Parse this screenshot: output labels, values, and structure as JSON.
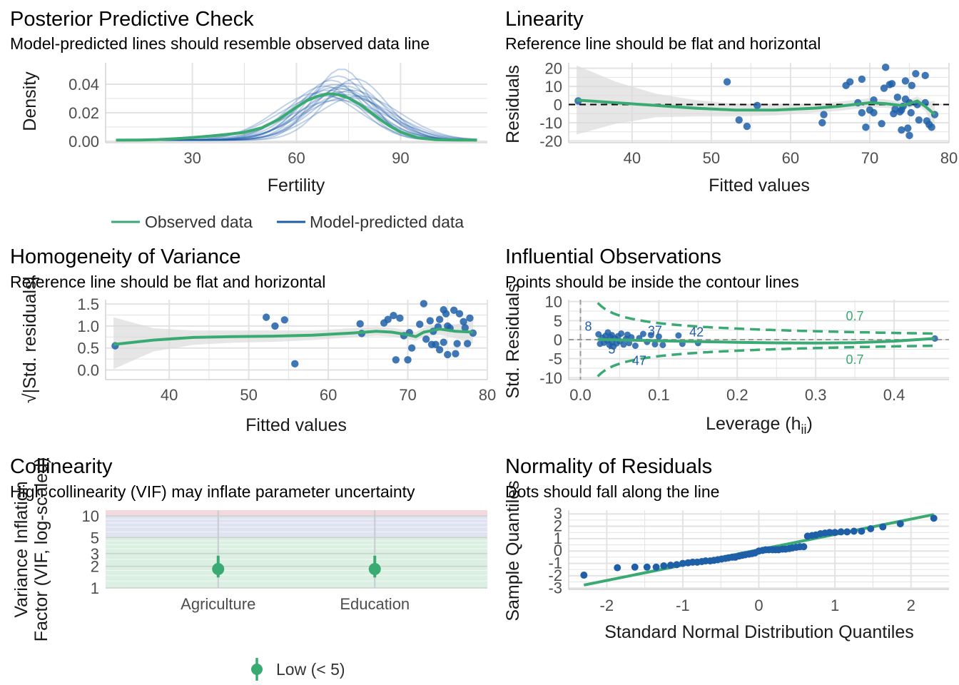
{
  "colors": {
    "green": "#3aaa73",
    "blue": "#1f5fa8",
    "grid": "#e3e3e3",
    "band": "#e3e3e3",
    "vif_low": "#dcefe3",
    "vif_moderate": "#dfe3f1",
    "vif_high": "#f3d9dc"
  },
  "chart_data": [
    {
      "id": "ppc",
      "type": "line",
      "title": "Posterior Predictive Check",
      "subtitle": "Model-predicted lines should resemble observed data line",
      "xlabel": "Fertility",
      "ylabel": "Density",
      "xlim": [
        5,
        115
      ],
      "ylim": [
        -0.001,
        0.055
      ],
      "xticks": [
        30,
        60,
        90
      ],
      "yticks": [
        0.0,
        0.02,
        0.04
      ],
      "ytick_labels": [
        "0.00",
        "0.02",
        "0.04"
      ],
      "legend": [
        "Observed data",
        "Model-predicted data"
      ],
      "legend_position": "bottom",
      "observed": {
        "x": [
          8,
          15,
          20,
          25,
          30,
          35,
          40,
          45,
          50,
          55,
          60,
          63,
          66,
          69,
          72,
          75,
          78,
          81,
          84,
          87,
          90,
          95,
          100,
          105,
          112
        ],
        "y": [
          0.0008,
          0.0009,
          0.0012,
          0.0018,
          0.0026,
          0.0036,
          0.0048,
          0.0063,
          0.0095,
          0.0155,
          0.024,
          0.0285,
          0.0315,
          0.0333,
          0.0327,
          0.0303,
          0.0262,
          0.021,
          0.0155,
          0.0105,
          0.0065,
          0.0025,
          0.0011,
          0.0009,
          0.0008
        ]
      },
      "predicted": [
        {
          "mean": 73,
          "sd": 11,
          "peak": 0.036
        },
        {
          "mean": 70,
          "sd": 12,
          "peak": 0.033
        },
        {
          "mean": 75,
          "sd": 10,
          "peak": 0.04
        },
        {
          "mean": 72,
          "sd": 9,
          "peak": 0.045
        },
        {
          "mean": 68,
          "sd": 13,
          "peak": 0.031
        },
        {
          "mean": 76,
          "sd": 11,
          "peak": 0.035
        },
        {
          "mean": 71,
          "sd": 10,
          "peak": 0.039
        },
        {
          "mean": 74,
          "sd": 12,
          "peak": 0.032
        },
        {
          "mean": 69,
          "sd": 11,
          "peak": 0.035
        },
        {
          "mean": 77,
          "sd": 9,
          "peak": 0.043
        },
        {
          "mean": 72,
          "sd": 14,
          "peak": 0.028
        },
        {
          "mean": 73,
          "sd": 8,
          "peak": 0.05
        },
        {
          "mean": 66,
          "sd": 12,
          "peak": 0.033
        },
        {
          "mean": 74,
          "sd": 10,
          "peak": 0.038
        },
        {
          "mean": 70,
          "sd": 9,
          "peak": 0.042
        },
        {
          "mean": 78,
          "sd": 12,
          "peak": 0.031
        },
        {
          "mean": 71,
          "sd": 11,
          "peak": 0.037
        },
        {
          "mean": 75,
          "sd": 13,
          "peak": 0.03
        },
        {
          "mean": 68,
          "sd": 10,
          "peak": 0.038
        },
        {
          "mean": 73,
          "sd": 11.5,
          "peak": 0.034
        }
      ]
    },
    {
      "id": "linearity",
      "type": "scatter",
      "title": "Linearity",
      "subtitle": "Reference line should be flat and horizontal",
      "xlabel": "Fitted values",
      "ylabel": "Residuals",
      "xlim": [
        32,
        80
      ],
      "ylim": [
        -21,
        23
      ],
      "xticks": [
        40,
        50,
        60,
        70,
        80
      ],
      "yticks": [
        -20,
        -10,
        0,
        10,
        20
      ],
      "reference_line": 0,
      "points": [
        [
          33.2,
          2
        ],
        [
          52,
          12.5
        ],
        [
          53.5,
          -8.5
        ],
        [
          54.5,
          -12
        ],
        [
          55.8,
          -0.5
        ],
        [
          64,
          -10
        ],
        [
          64.2,
          -5.5
        ],
        [
          67,
          10.5
        ],
        [
          67.5,
          12.5
        ],
        [
          68.5,
          1
        ],
        [
          69,
          -4.5
        ],
        [
          69,
          14
        ],
        [
          69.5,
          -12.5
        ],
        [
          70,
          -3
        ],
        [
          70.5,
          -4.5
        ],
        [
          70.5,
          2.5
        ],
        [
          71.5,
          -10.5
        ],
        [
          71.8,
          9
        ],
        [
          72,
          20.5
        ],
        [
          72.5,
          11
        ],
        [
          72.8,
          11.5
        ],
        [
          73,
          -5
        ],
        [
          73.2,
          -2.5
        ],
        [
          73.5,
          4
        ],
        [
          73.8,
          -4
        ],
        [
          74,
          -14
        ],
        [
          74,
          -3
        ],
        [
          74.2,
          -1
        ],
        [
          74.5,
          13
        ],
        [
          74.5,
          3
        ],
        [
          74.8,
          -13
        ],
        [
          75,
          1
        ],
        [
          75,
          -17
        ],
        [
          75.2,
          -4.5
        ],
        [
          75.3,
          10.5
        ],
        [
          75.8,
          17
        ],
        [
          76,
          0
        ],
        [
          76.2,
          -8.5
        ],
        [
          77,
          16
        ],
        [
          77,
          1
        ],
        [
          77.2,
          -9
        ],
        [
          77.5,
          -11
        ],
        [
          77.8,
          -12.5
        ],
        [
          78.2,
          -5.5
        ]
      ],
      "smooth": {
        "x": [
          33,
          38,
          43,
          48,
          53,
          58,
          63,
          66,
          68,
          70,
          72,
          74,
          75,
          76,
          77,
          78.2
        ],
        "y": [
          2.5,
          1,
          -0.5,
          -2,
          -3,
          -3,
          -2,
          -1,
          0,
          1,
          0.5,
          -0.5,
          0.5,
          2,
          -1,
          -5.5
        ],
        "lower": [
          -16.5,
          -10.5,
          -7,
          -6.5,
          -6.5,
          -6,
          -4.5,
          -3.5,
          -2.5,
          -1.5,
          -1.8,
          -2.5,
          -1.8,
          -0.5,
          -3.5,
          -13
        ],
        "upper": [
          21.5,
          12.5,
          6,
          2.5,
          0.5,
          0,
          0.5,
          1.5,
          2.5,
          3.5,
          2.8,
          1.5,
          2.8,
          4.5,
          1.5,
          2
        ]
      }
    },
    {
      "id": "homogeneity",
      "type": "scatter",
      "title": "Homogeneity of Variance",
      "subtitle": "Reference line should be flat and horizontal",
      "xlabel": "Fitted values",
      "ylabel": "√|Std. residuals|",
      "xlim": [
        32,
        80
      ],
      "ylim": [
        -0.22,
        1.6
      ],
      "xticks": [
        40,
        50,
        60,
        70,
        80
      ],
      "yticks": [
        0.0,
        0.5,
        1.0,
        1.5
      ],
      "ytick_labels": [
        "0.0",
        "0.5",
        "1.0",
        "1.5"
      ],
      "points": [
        [
          33.2,
          0.55
        ],
        [
          52.2,
          1.2
        ],
        [
          53.3,
          1.0
        ],
        [
          54.5,
          1.14
        ],
        [
          55.8,
          0.14
        ],
        [
          64,
          1.05
        ],
        [
          64.2,
          0.83
        ],
        [
          67,
          1.07
        ],
        [
          67.5,
          1.15
        ],
        [
          68.2,
          1.24
        ],
        [
          68.5,
          0.23
        ],
        [
          69,
          1.18
        ],
        [
          69.5,
          0.78
        ],
        [
          70,
          0.23
        ],
        [
          70.2,
          0.85
        ],
        [
          70.5,
          0.5
        ],
        [
          71.5,
          1.04
        ],
        [
          72,
          1.51
        ],
        [
          72.3,
          0.7
        ],
        [
          72.8,
          1.12
        ],
        [
          73,
          0.58
        ],
        [
          73.2,
          0.88
        ],
        [
          73.5,
          0.58
        ],
        [
          73.8,
          0.98
        ],
        [
          74,
          0.46
        ],
        [
          74,
          1.15
        ],
        [
          74.5,
          0.63
        ],
        [
          74.5,
          1.37
        ],
        [
          74.8,
          1.28
        ],
        [
          75,
          0.35
        ],
        [
          75,
          1.0
        ],
        [
          75.3,
          0.95
        ],
        [
          75.8,
          1.36
        ],
        [
          76,
          0.37
        ],
        [
          76.2,
          0.6
        ],
        [
          76.5,
          1.28
        ],
        [
          77,
          1.1
        ],
        [
          77.2,
          0.96
        ],
        [
          77.5,
          0.6
        ],
        [
          77.8,
          1.18
        ],
        [
          78.2,
          0.84
        ]
      ],
      "smooth": {
        "x": [
          33,
          38,
          43,
          48,
          53,
          58,
          63,
          66,
          68,
          70,
          71,
          72,
          74,
          76,
          78.2
        ],
        "y": [
          0.58,
          0.68,
          0.74,
          0.76,
          0.77,
          0.79,
          0.84,
          0.88,
          0.86,
          0.8,
          0.76,
          0.86,
          0.93,
          0.88,
          0.86
        ],
        "lower": [
          0.02,
          0.42,
          0.57,
          0.62,
          0.64,
          0.68,
          0.74,
          0.78,
          0.76,
          0.7,
          0.66,
          0.76,
          0.8,
          0.72,
          0.6
        ],
        "upper": [
          1.2,
          0.95,
          0.9,
          0.9,
          0.9,
          0.9,
          0.95,
          0.98,
          0.96,
          0.9,
          0.86,
          0.96,
          1.05,
          1.04,
          1.12
        ]
      }
    },
    {
      "id": "influence",
      "type": "scatter",
      "title": "Influential Observations",
      "subtitle": "Points should be inside the contour lines",
      "xlabel": "Leverage (h",
      "xlabel_sub": "ii",
      "xlabel_end": ")",
      "ylabel": "Std. Residuals",
      "xlim": [
        -0.015,
        0.47
      ],
      "ylim": [
        -10.5,
        10.5
      ],
      "xticks": [
        0.0,
        0.1,
        0.2,
        0.3,
        0.4
      ],
      "xtick_labels": [
        "0.0",
        "0.1",
        "0.2",
        "0.3",
        "0.4"
      ],
      "yticks": [
        -10,
        -5,
        0,
        5,
        10
      ],
      "contour_level": 0.7,
      "contour_labels": [
        "0.7",
        "0.7"
      ],
      "point_labels": [
        {
          "label": "8",
          "x": 0.01,
          "y": 3.5
        },
        {
          "label": "37",
          "x": 0.095,
          "y": 2.3
        },
        {
          "label": "42",
          "x": 0.148,
          "y": 2.0
        },
        {
          "label": "47",
          "x": 0.075,
          "y": -5.5
        },
        {
          "label": "5",
          "x": 0.04,
          "y": -2.5
        }
      ],
      "points": [
        [
          0.023,
          1.4
        ],
        [
          0.025,
          -1.1
        ],
        [
          0.028,
          0.5
        ],
        [
          0.03,
          -0.8
        ],
        [
          0.032,
          1.0
        ],
        [
          0.034,
          -0.2
        ],
        [
          0.035,
          1.9
        ],
        [
          0.037,
          -1.4
        ],
        [
          0.038,
          0.7
        ],
        [
          0.04,
          -0.6
        ],
        [
          0.04,
          1.2
        ],
        [
          0.042,
          -1.8
        ],
        [
          0.044,
          0.3
        ],
        [
          0.046,
          -1.0
        ],
        [
          0.048,
          0.9
        ],
        [
          0.05,
          -0.4
        ],
        [
          0.052,
          1.6
        ],
        [
          0.055,
          -1.3
        ],
        [
          0.058,
          0.2
        ],
        [
          0.06,
          1.3
        ],
        [
          0.062,
          -0.9
        ],
        [
          0.065,
          0.6
        ],
        [
          0.07,
          -1.6
        ],
        [
          0.075,
          0.4
        ],
        [
          0.08,
          1.5
        ],
        [
          0.085,
          -0.6
        ],
        [
          0.09,
          1.2
        ],
        [
          0.095,
          -1.2
        ],
        [
          0.1,
          0.8
        ],
        [
          0.105,
          -1.4
        ],
        [
          0.125,
          1.1
        ],
        [
          0.13,
          -1.1
        ],
        [
          0.15,
          -0.9
        ],
        [
          0.452,
          0.3
        ]
      ],
      "smooth": {
        "x": [
          0.022,
          0.05,
          0.1,
          0.15,
          0.2,
          0.25,
          0.3,
          0.35,
          0.4,
          0.452
        ],
        "y": [
          0.1,
          -0.1,
          -0.3,
          -0.5,
          -0.7,
          -0.85,
          -0.9,
          -0.8,
          -0.4,
          0.3
        ]
      }
    },
    {
      "id": "collinearity",
      "type": "scatter",
      "title": "Collinearity",
      "subtitle": "High collinearity (VIF) may inflate parameter uncertainty",
      "xlabel": "",
      "ylabel": "Variance Inflation Factor (VIF, log-scaled)",
      "ylabel_line1": "Variance Inflation",
      "ylabel_line2": "Factor (VIF, log-scaled)",
      "y_scale": "log",
      "ylim": [
        1,
        12
      ],
      "yticks": [
        1,
        2,
        3,
        5,
        10
      ],
      "categories": [
        "Agriculture",
        "Education"
      ],
      "values": [
        1.83,
        1.83
      ],
      "ci_low": [
        1.4,
        1.4
      ],
      "ci_high": [
        2.8,
        2.8
      ],
      "zones": [
        {
          "name": "low",
          "from": 1,
          "to": 5
        },
        {
          "name": "moderate",
          "from": 5,
          "to": 10
        },
        {
          "name": "high",
          "from": 10,
          "to": 12
        }
      ],
      "legend": [
        "Low (< 5)"
      ],
      "legend_position": "bottom"
    },
    {
      "id": "normality",
      "type": "scatter",
      "title": "Normality of Residuals",
      "subtitle": "Dots should fall along the line",
      "xlabel": "Standard Normal Distribution Quantiles",
      "ylabel": "Sample Quantiles",
      "xlim": [
        -2.5,
        2.5
      ],
      "ylim": [
        -3.1,
        3.3
      ],
      "xticks": [
        -2,
        -1,
        0,
        1,
        2
      ],
      "yticks": [
        -3,
        -2,
        -1,
        0,
        1,
        2,
        3
      ],
      "reference_line": {
        "x": [
          -2.3,
          2.3
        ],
        "y": [
          -2.75,
          2.95
        ]
      },
      "points": [
        [
          -2.3,
          -1.95
        ],
        [
          -1.86,
          -1.35
        ],
        [
          -1.63,
          -1.3
        ],
        [
          -1.47,
          -1.3
        ],
        [
          -1.35,
          -1.3
        ],
        [
          -1.25,
          -1.2
        ],
        [
          -1.16,
          -1.15
        ],
        [
          -1.08,
          -1.1
        ],
        [
          -1.0,
          -1.0
        ],
        [
          -0.93,
          -0.95
        ],
        [
          -0.87,
          -0.9
        ],
        [
          -0.81,
          -0.9
        ],
        [
          -0.75,
          -0.85
        ],
        [
          -0.7,
          -0.8
        ],
        [
          -0.64,
          -0.8
        ],
        [
          -0.59,
          -0.75
        ],
        [
          -0.54,
          -0.7
        ],
        [
          -0.49,
          -0.65
        ],
        [
          -0.44,
          -0.6
        ],
        [
          -0.4,
          -0.55
        ],
        [
          -0.35,
          -0.5
        ],
        [
          -0.31,
          -0.5
        ],
        [
          -0.26,
          -0.4
        ],
        [
          -0.22,
          -0.35
        ],
        [
          -0.18,
          -0.3
        ],
        [
          -0.13,
          -0.25
        ],
        [
          -0.09,
          -0.2
        ],
        [
          -0.05,
          -0.15
        ],
        [
          0.0,
          0.0
        ],
        [
          0.05,
          0.05
        ],
        [
          0.09,
          0.1
        ],
        [
          0.13,
          0.1
        ],
        [
          0.18,
          0.1
        ],
        [
          0.22,
          0.1
        ],
        [
          0.26,
          0.1
        ],
        [
          0.31,
          0.15
        ],
        [
          0.35,
          0.15
        ],
        [
          0.4,
          0.2
        ],
        [
          0.44,
          0.25
        ],
        [
          0.49,
          0.3
        ],
        [
          0.54,
          0.35
        ],
        [
          0.59,
          0.35
        ],
        [
          0.64,
          1.2
        ],
        [
          0.7,
          1.25
        ],
        [
          0.75,
          1.3
        ],
        [
          0.81,
          1.4
        ],
        [
          0.87,
          1.45
        ],
        [
          0.93,
          1.5
        ],
        [
          1.0,
          1.5
        ],
        [
          1.08,
          1.55
        ],
        [
          1.16,
          1.55
        ],
        [
          1.25,
          1.6
        ],
        [
          1.35,
          1.6
        ],
        [
          1.47,
          1.8
        ],
        [
          1.63,
          1.95
        ],
        [
          1.86,
          2.2
        ],
        [
          2.3,
          2.65
        ]
      ]
    }
  ]
}
